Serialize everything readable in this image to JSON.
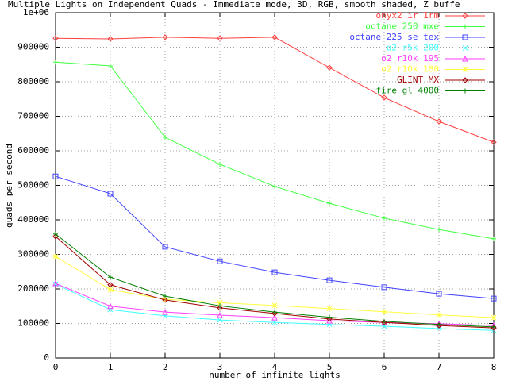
{
  "chart_data": {
    "type": "line",
    "title": "Multiple Lights on Independent Quads - Immediate mode, 3D, RGB, smooth shaded, Z buffe",
    "x_label": "number of infinite lights",
    "y_label": "quads per second",
    "x": [
      0,
      1,
      2,
      3,
      4,
      5,
      6,
      7,
      8
    ],
    "xlim": [
      0,
      8
    ],
    "xticks": [
      0,
      1,
      2,
      3,
      4,
      5,
      6,
      7,
      8
    ],
    "ylim": [
      0,
      1000000
    ],
    "yticks": [
      0,
      100000,
      200000,
      300000,
      400000,
      500000,
      600000,
      700000,
      800000,
      900000,
      {
        "value": 1000000,
        "label": "1e+06"
      }
    ],
    "grid": true,
    "legend": "top-right",
    "series": [
      {
        "name": "onyx2 ir 1rm",
        "color": "#ff4040",
        "marker": "diamond",
        "values": [
          926000,
          924000,
          929000,
          926000,
          929000,
          841000,
          754000,
          685000,
          625000
        ]
      },
      {
        "name": "octane 250 mxe",
        "color": "#40ff40",
        "marker": "plus",
        "values": [
          857000,
          846000,
          639000,
          561000,
          497000,
          448000,
          405000,
          372000,
          345000
        ]
      },
      {
        "name": "octane 225 se tex",
        "color": "#4040ff",
        "marker": "square",
        "values": [
          526000,
          476000,
          322000,
          280000,
          248000,
          225000,
          205000,
          186000,
          172000
        ]
      },
      {
        "name": "o2 r5k 200",
        "color": "#40ffff",
        "marker": "cross",
        "values": [
          214000,
          140000,
          122000,
          110000,
          103000,
          97000,
          92000,
          85000,
          80000
        ]
      },
      {
        "name": "o2 r10k 195",
        "color": "#ff40ff",
        "marker": "triangle",
        "values": [
          216000,
          150000,
          133000,
          124000,
          117000,
          108000,
          103000,
          99000,
          94000
        ]
      },
      {
        "name": "o2 r10k 180",
        "color": "#ffff40",
        "marker": "star",
        "values": [
          294000,
          198000,
          170000,
          160000,
          152000,
          143000,
          134000,
          125000,
          117000
        ]
      },
      {
        "name": "GLINT MX",
        "color": "#a00000",
        "marker": "diamond",
        "values": [
          352000,
          212000,
          168000,
          145000,
          129000,
          113000,
          103000,
          94000,
          87000
        ]
      },
      {
        "name": "fire gl 4000",
        "color": "#008000",
        "marker": "plus",
        "values": [
          359000,
          234000,
          179000,
          151000,
          133000,
          118000,
          106000,
          97000,
          90000
        ]
      }
    ]
  }
}
